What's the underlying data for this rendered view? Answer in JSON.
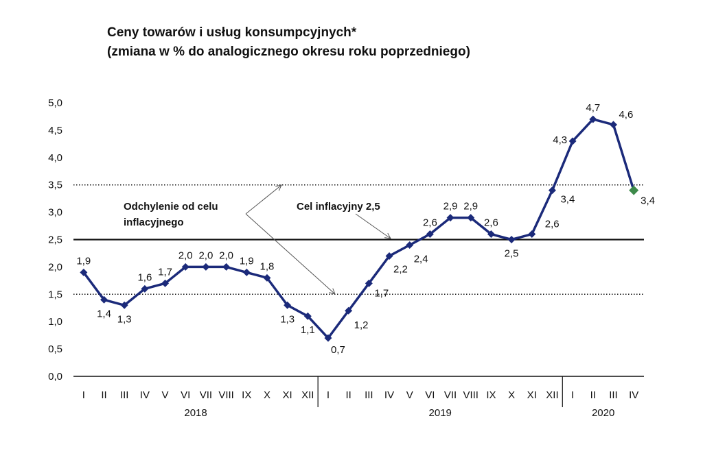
{
  "chart_data": {
    "type": "line",
    "title": "Ceny towarów i usług konsumpcyjnych*",
    "subtitle": "(zmiana w % do analogicznego okresu roku poprzedniego)",
    "ylim": [
      0,
      5
    ],
    "yticks": [
      "0,0",
      "0,5",
      "1,0",
      "1,5",
      "2,0",
      "2,5",
      "3,0",
      "3,5",
      "4,0",
      "4,5",
      "5,0"
    ],
    "x_month_labels": [
      "I",
      "II",
      "III",
      "IV",
      "V",
      "VI",
      "VII",
      "VIII",
      "IX",
      "X",
      "XI",
      "XII",
      "I",
      "II",
      "III",
      "IV",
      "V",
      "VI",
      "VII",
      "VIII",
      "IX",
      "X",
      "XI",
      "XII",
      "I",
      "II",
      "III",
      "IV"
    ],
    "years": [
      {
        "label": "2018",
        "start": 0,
        "end": 11
      },
      {
        "label": "2019",
        "start": 12,
        "end": 23
      },
      {
        "label": "2020",
        "start": 24,
        "end": 27
      }
    ],
    "series": [
      {
        "values": [
          1.9,
          1.4,
          1.3,
          1.6,
          1.7,
          2.0,
          2.0,
          2.0,
          1.9,
          1.8,
          1.3,
          1.1,
          0.7,
          1.2,
          1.7,
          2.2,
          2.4,
          2.6,
          2.9,
          2.9,
          2.6,
          2.5,
          2.6,
          3.4,
          4.3,
          4.7,
          4.6,
          3.4
        ],
        "labels": [
          "1,9",
          "1,4",
          "1,3",
          "1,6",
          "1,7",
          "2,0",
          "2,0",
          "2,0",
          "1,9",
          "1,8",
          "1,3",
          "1,1",
          "0,7",
          "1,2",
          "1,7",
          "2,2",
          "2,4",
          "2,6",
          "2,9",
          "2,9",
          "2,6",
          "2,5",
          "2,6",
          "3,4",
          "4,3",
          "4,7",
          "4,6",
          "3,4"
        ],
        "color": "#1b2a7a",
        "last_point_color": "#3d8a4a"
      }
    ],
    "reference_lines": [
      {
        "value": 2.5,
        "style": "solid"
      },
      {
        "value": 3.5,
        "style": "dotted"
      },
      {
        "value": 1.5,
        "style": "dotted"
      }
    ],
    "annotations": [
      {
        "text_lines": [
          "Odchylenie od celu",
          "inflacyjnego"
        ]
      },
      {
        "text_lines": [
          "Cel inflacyjny 2,5"
        ]
      }
    ]
  }
}
